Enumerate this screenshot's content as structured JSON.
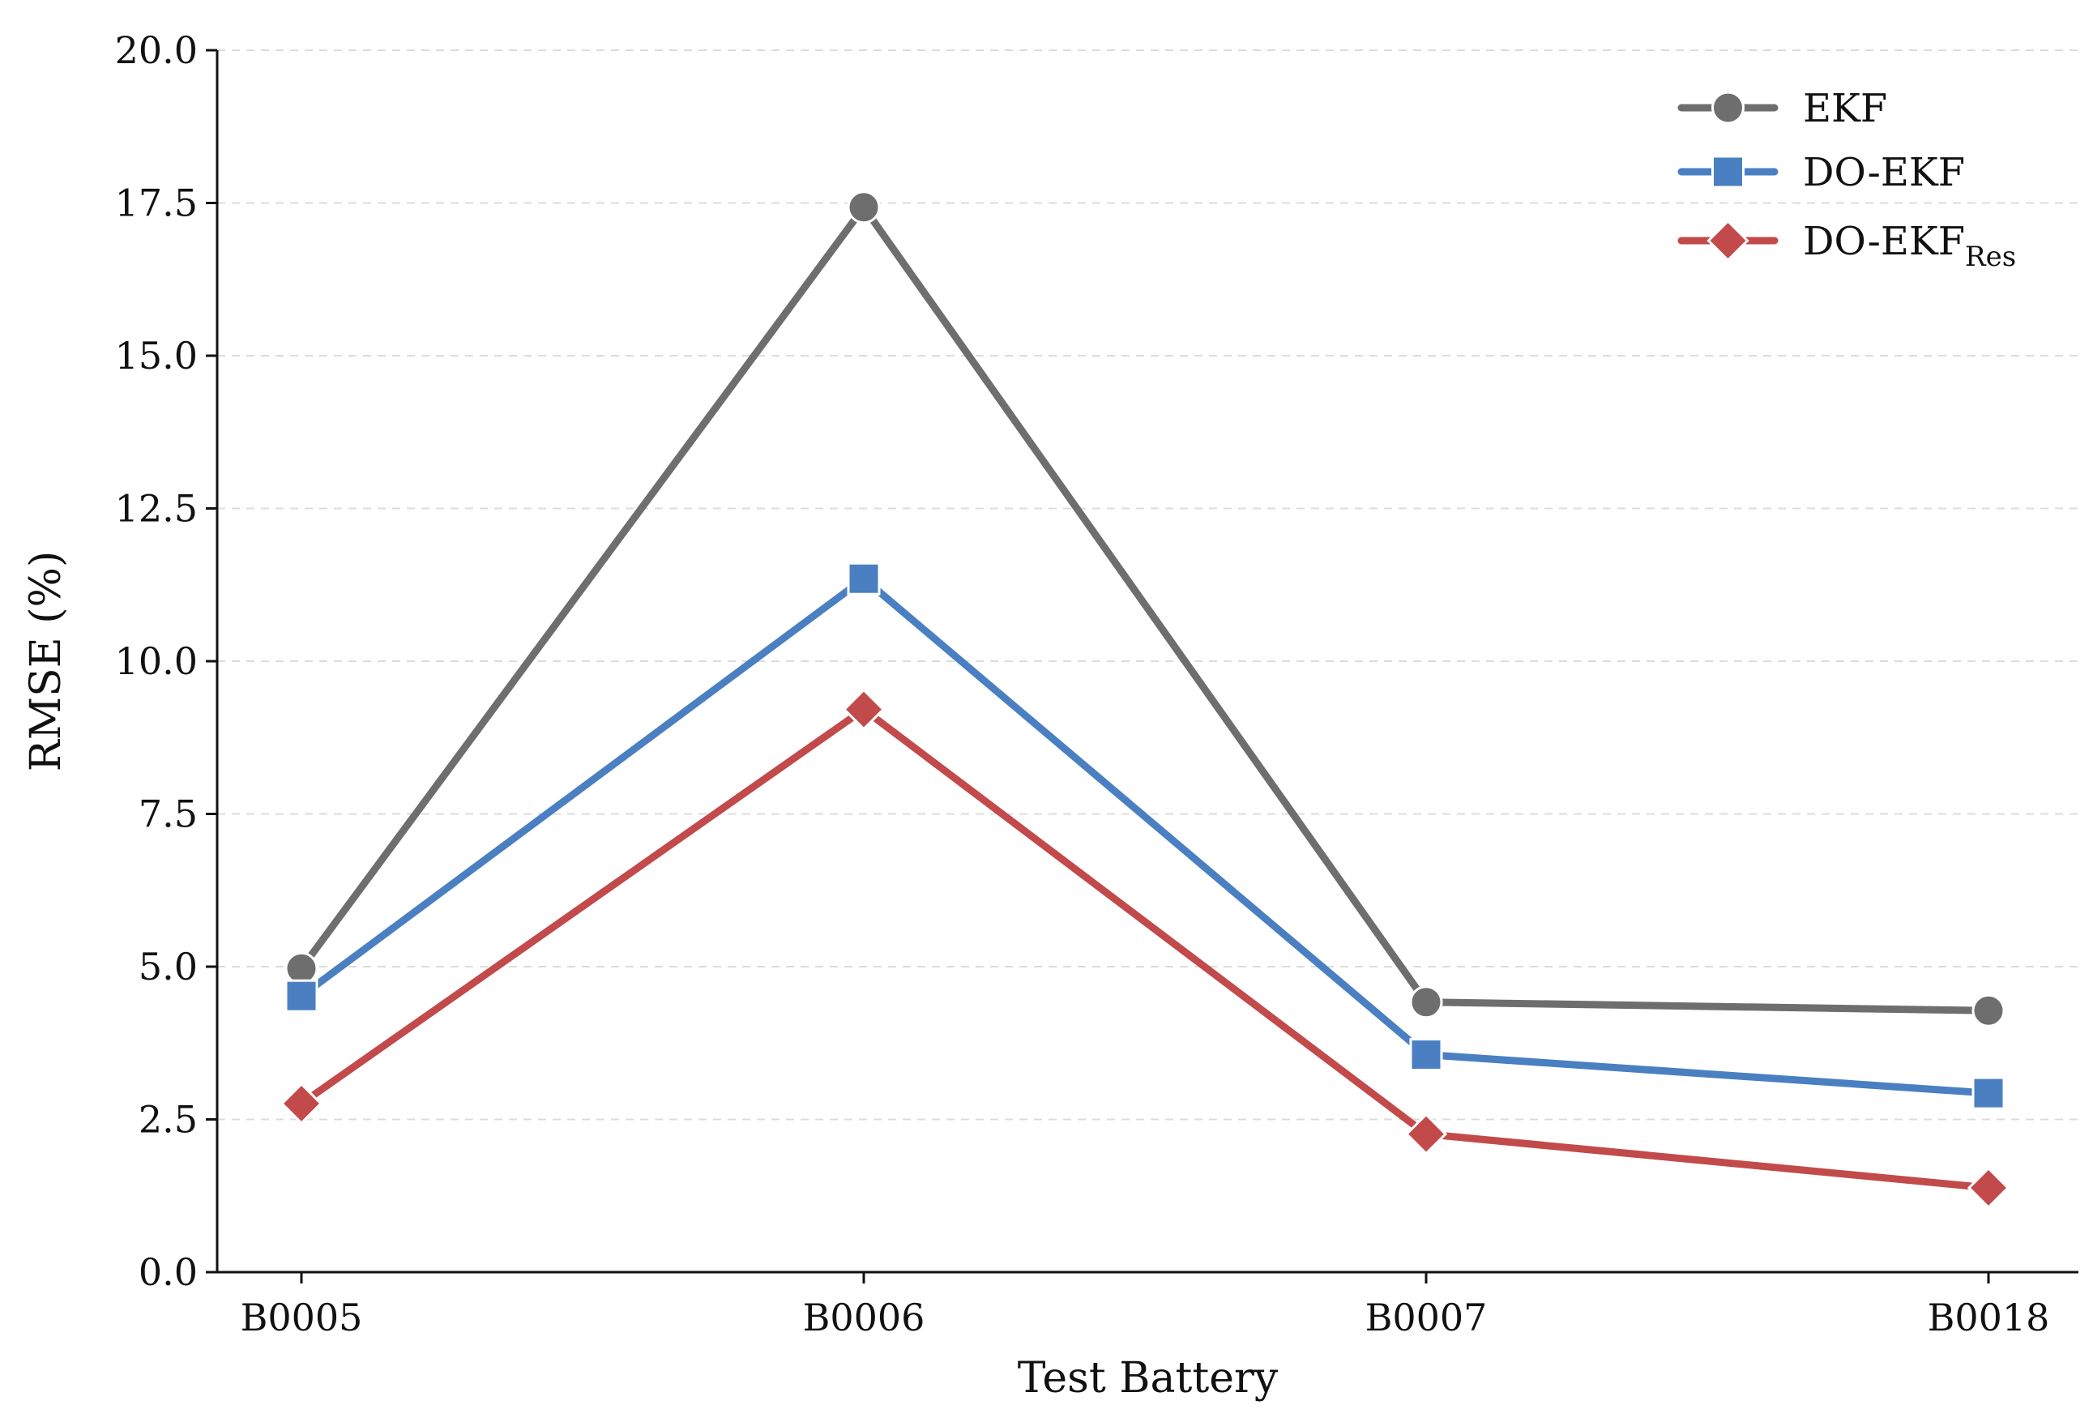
{
  "chart_data": {
    "type": "line",
    "categories": [
      "B0005",
      "B0006",
      "B0007",
      "B0018"
    ],
    "series": [
      {
        "name": "EKF",
        "values": [
          4.97,
          17.43,
          4.42,
          4.28
        ],
        "color": "#6e6e6e",
        "marker": "circle"
      },
      {
        "name": "DO-EKF",
        "values": [
          4.52,
          11.35,
          3.56,
          2.93
        ],
        "color": "#4a7fc1",
        "marker": "square"
      },
      {
        "name": "DO-EKF",
        "name_subscript": "Res",
        "values": [
          2.76,
          9.21,
          2.26,
          1.38
        ],
        "color": "#c24a4a",
        "marker": "diamond"
      }
    ],
    "xlabel": "Test Battery",
    "ylabel": "RMSE (%)",
    "ylim": [
      0,
      20
    ],
    "yticks": [
      "0.0",
      "2.5",
      "5.0",
      "7.5",
      "10.0",
      "12.5",
      "15.0",
      "17.5",
      "20.0"
    ],
    "grid": "horizontal-dashed",
    "legend_position": "top-right"
  }
}
